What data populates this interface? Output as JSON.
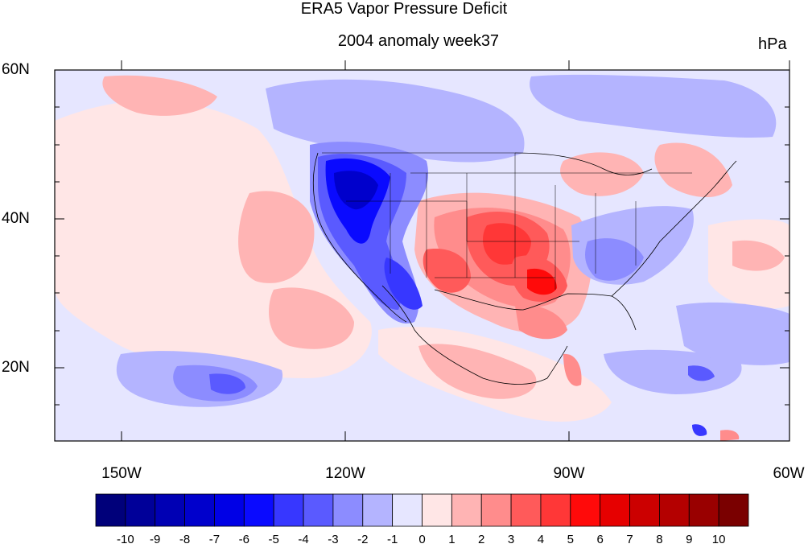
{
  "title": "ERA5 Vapor Pressure Deficit",
  "subtitle": "2004 anomaly week37",
  "units": "hPa",
  "map": {
    "lon_range": [
      -160,
      -60
    ],
    "lat_range": [
      10,
      60
    ],
    "y_ticks": [
      "60N",
      "40N",
      "20N"
    ],
    "x_ticks": [
      "150W",
      "120W",
      "90W",
      "60W"
    ],
    "y_tick_values": [
      60,
      40,
      20
    ],
    "x_tick_values": [
      -150,
      -120,
      -90,
      -60
    ]
  },
  "colorbar": {
    "labels": [
      "-10",
      "-9",
      "-8",
      "-7",
      "-6",
      "-5",
      "-4",
      "-3",
      "-2",
      "-1",
      "0",
      "1",
      "2",
      "3",
      "4",
      "5",
      "6",
      "7",
      "8",
      "9",
      "10"
    ],
    "colors": [
      "#00007a",
      "#000099",
      "#0000b4",
      "#0000cc",
      "#0000e6",
      "#0a0aff",
      "#3737ff",
      "#5a5aff",
      "#8c8cff",
      "#b4b4ff",
      "#e6e6ff",
      "#ffe6e6",
      "#ffb4b4",
      "#ff8c8c",
      "#ff5a5a",
      "#ff3737",
      "#ff0a0a",
      "#e60000",
      "#cc0000",
      "#b40000",
      "#990000",
      "#7a0000"
    ]
  }
}
